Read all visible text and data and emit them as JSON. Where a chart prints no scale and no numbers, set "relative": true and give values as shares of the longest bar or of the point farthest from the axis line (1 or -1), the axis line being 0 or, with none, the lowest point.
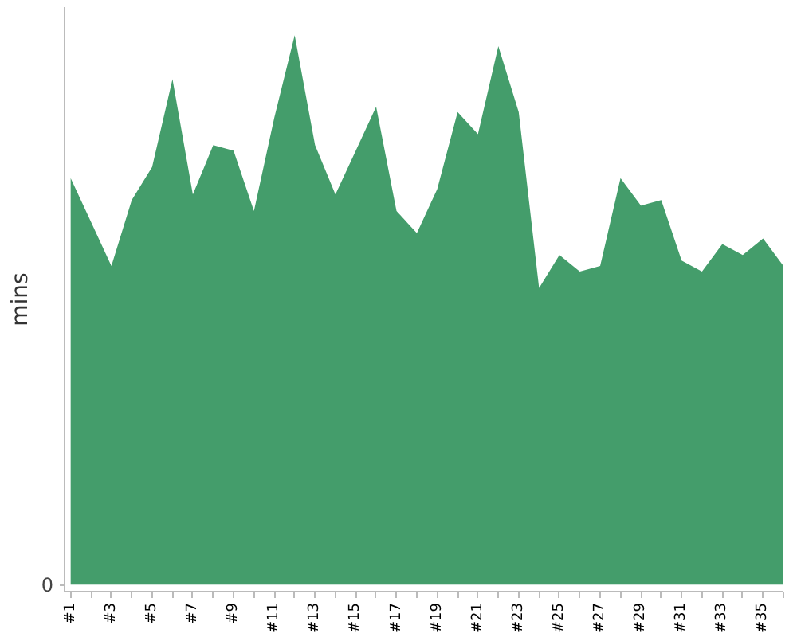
{
  "chart_data": {
    "type": "area",
    "ylabel": "mins",
    "relative": true,
    "color": "#449d6b",
    "annotations": [
      "0"
    ],
    "categories": [
      "#1",
      null,
      "#3",
      null,
      "#5",
      null,
      "#7",
      null,
      "#9",
      null,
      "#11",
      null,
      "#13",
      null,
      "#15",
      null,
      "#17",
      null,
      "#19",
      null,
      "#21",
      null,
      "#23",
      null,
      "#25",
      null,
      "#27",
      null,
      "#29",
      null,
      "#31",
      null,
      "#33",
      null,
      "#35",
      null
    ],
    "values": [
      0.74,
      0.66,
      0.58,
      0.7,
      0.76,
      0.92,
      0.71,
      0.8,
      0.79,
      0.68,
      0.85,
      1,
      0.8,
      0.71,
      0.79,
      0.87,
      0.68,
      0.64,
      0.72,
      0.86,
      0.82,
      0.98,
      0.86,
      0.54,
      0.6,
      0.57,
      0.58,
      0.74,
      0.69,
      0.7,
      0.59,
      0.57,
      0.62,
      0.6,
      0.63,
      0.58
    ]
  }
}
